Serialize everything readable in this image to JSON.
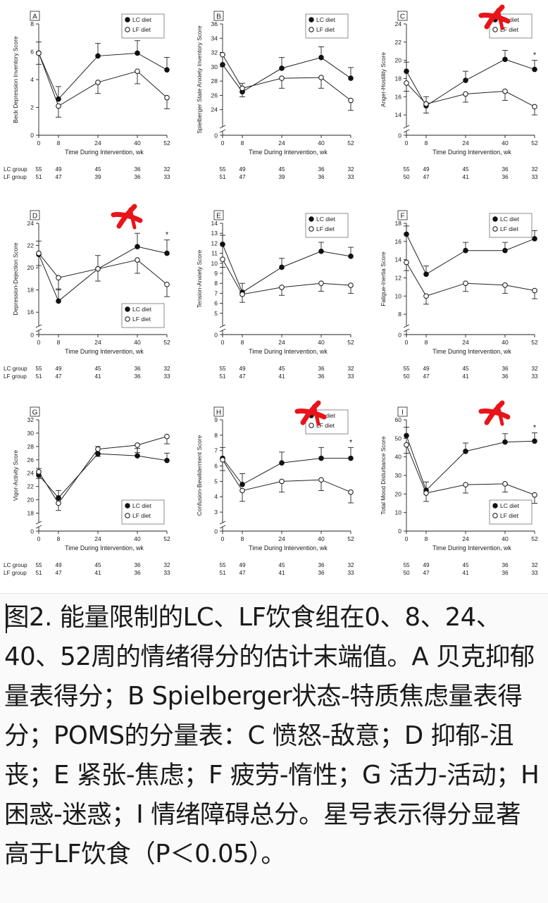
{
  "caption": "图2. 能量限制的LC、LF饮食组在0、8、24、40、52周的情绪得分的估计末端值。A 贝克抑郁量表得分；B Spielberger状态-特质焦虑量表得分；POMS的分量表：C 愤怒-敌意；D 抑郁-沮丧；E 紧张-焦虑；F 疲劳-惰性；G 活力-活动；H 困惑-迷惑；I 情绪障碍总分。星号表示得分显著高于LF饮食（P＜0.05）。",
  "colors": {
    "lc_marker": "#111111",
    "lf_marker": "#ffffff",
    "annotation_mark": "#e8141a"
  },
  "chart_data": [
    {
      "type": "line",
      "panel": "A",
      "ylabel": "Beck Depression Inventory Score",
      "xlabel": "Time During Intervention, wk",
      "x": [
        0,
        8,
        24,
        40,
        52
      ],
      "ylim": [
        0,
        8
      ],
      "yticks": [
        0,
        2,
        4,
        6,
        8
      ],
      "axis_break": false,
      "legend": "top-right",
      "significant": [],
      "series": [
        {
          "name": "LC diet",
          "values": [
            5.9,
            2.6,
            5.7,
            5.9,
            4.7
          ],
          "err": [
            0.8,
            0.9,
            0.9,
            0.9,
            0.9
          ]
        },
        {
          "name": "LF diet",
          "values": [
            5.9,
            2.1,
            3.8,
            4.6,
            2.7
          ],
          "err": [
            0.8,
            0.8,
            0.8,
            0.9,
            0.8
          ]
        }
      ],
      "n_rows": [
        {
          "label": "LC group",
          "values": [
            "55",
            "49",
            "45",
            "36",
            "32"
          ]
        },
        {
          "label": "LF group",
          "values": [
            "51",
            "47",
            "39",
            "36",
            "33"
          ]
        }
      ]
    },
    {
      "type": "line",
      "panel": "B",
      "ylabel": "Spielberger State Anxiety Inventory Score",
      "xlabel": "Time During Intervention, wk",
      "x": [
        0,
        8,
        24,
        40,
        52
      ],
      "ylim": [
        22,
        36
      ],
      "yticks": [
        24,
        26,
        28,
        30,
        32,
        34,
        36
      ],
      "axis_break": true,
      "legend": "top-right",
      "significant": [],
      "series": [
        {
          "name": "LC diet",
          "values": [
            30.3,
            26.5,
            29.8,
            31.3,
            28.4
          ],
          "err": [
            1.4,
            1.2,
            1.5,
            1.5,
            1.5
          ]
        },
        {
          "name": "LF diet",
          "values": [
            31.7,
            27.0,
            28.4,
            28.5,
            25.3
          ],
          "err": [
            1.4,
            1.2,
            1.4,
            1.5,
            1.4
          ]
        }
      ],
      "n_rows": [
        {
          "label": "LC group",
          "values": [
            "55",
            "49",
            "45",
            "36",
            "32"
          ]
        },
        {
          "label": "LF group",
          "values": [
            "51",
            "47",
            "39",
            "36",
            "33"
          ]
        }
      ]
    },
    {
      "type": "line",
      "panel": "C",
      "ylabel": "Anger-Hostility Score",
      "xlabel": "Time During Intervention, wk",
      "x": [
        0,
        8,
        24,
        40,
        52
      ],
      "ylim": [
        13,
        24
      ],
      "yticks": [
        14,
        16,
        18,
        20,
        22,
        24
      ],
      "axis_break": true,
      "legend": "top-right",
      "significant": [
        52
      ],
      "red_mark": true,
      "series": [
        {
          "name": "LC diet",
          "values": [
            18.8,
            15.0,
            17.8,
            20.1,
            19.0
          ],
          "err": [
            1.0,
            1.0,
            1.0,
            1.0,
            1.0
          ]
        },
        {
          "name": "LF diet",
          "values": [
            17.5,
            15.2,
            16.3,
            16.6,
            14.9
          ],
          "err": [
            0.9,
            1.0,
            0.9,
            1.0,
            0.9
          ]
        }
      ],
      "n_rows": [
        {
          "label": "LC group",
          "values": [
            "55",
            "49",
            "45",
            "36",
            "32"
          ]
        },
        {
          "label": "LF group",
          "values": [
            "50",
            "47",
            "41",
            "36",
            "33"
          ]
        }
      ]
    },
    {
      "type": "line",
      "panel": "D",
      "ylabel": "Depression-Dejection Score",
      "xlabel": "Time During Intervention, wk",
      "x": [
        0,
        8,
        24,
        40,
        52
      ],
      "ylim": [
        15,
        24
      ],
      "yticks": [
        16,
        18,
        20,
        22,
        24
      ],
      "axis_break": true,
      "legend": "bottom-right",
      "significant": [
        52
      ],
      "red_mark": true,
      "series": [
        {
          "name": "LC diet",
          "values": [
            21.2,
            17.0,
            19.9,
            21.9,
            21.3
          ],
          "err": [
            1.2,
            1.1,
            1.2,
            1.2,
            1.2
          ]
        },
        {
          "name": "LF diet",
          "values": [
            21.3,
            19.1,
            19.9,
            20.7,
            18.5
          ],
          "err": [
            1.1,
            1.1,
            1.1,
            1.2,
            1.1
          ]
        }
      ],
      "n_rows": [
        {
          "label": "LC group",
          "values": [
            "55",
            "49",
            "45",
            "36",
            "32"
          ]
        },
        {
          "label": "LF group",
          "values": [
            "51",
            "47",
            "41",
            "36",
            "33"
          ]
        }
      ]
    },
    {
      "type": "line",
      "panel": "E",
      "ylabel": "Tension-Anxiety Score",
      "xlabel": "Time During Intervention, wk",
      "x": [
        0,
        8,
        24,
        40,
        52
      ],
      "ylim": [
        4,
        14
      ],
      "yticks": [
        5,
        6,
        7,
        8,
        9,
        10,
        11,
        12,
        13,
        14
      ],
      "axis_break": true,
      "legend": "top-right",
      "significant": [],
      "series": [
        {
          "name": "LC diet",
          "values": [
            11.9,
            7.1,
            9.6,
            11.2,
            10.7
          ],
          "err": [
            0.9,
            0.9,
            0.9,
            0.9,
            0.9
          ]
        },
        {
          "name": "LF diet",
          "values": [
            10.4,
            6.9,
            7.6,
            8.0,
            7.8
          ],
          "err": [
            0.8,
            0.8,
            0.8,
            0.8,
            0.8
          ]
        }
      ],
      "n_rows": [
        {
          "label": "LC group",
          "values": [
            "55",
            "49",
            "45",
            "36",
            "32"
          ]
        },
        {
          "label": "LF group",
          "values": [
            "51",
            "47",
            "41",
            "36",
            "33"
          ]
        }
      ]
    },
    {
      "type": "line",
      "panel": "F",
      "ylabel": "Fatigue-Inertia Score",
      "xlabel": "Time During Intervention, wk",
      "x": [
        0,
        8,
        24,
        40,
        52
      ],
      "ylim": [
        7,
        18
      ],
      "yticks": [
        8,
        10,
        12,
        14,
        16,
        18
      ],
      "axis_break": true,
      "legend": "top-right",
      "significant": [],
      "series": [
        {
          "name": "LC diet",
          "values": [
            16.8,
            12.4,
            15.0,
            15.0,
            16.3
          ],
          "err": [
            0.9,
            0.9,
            0.9,
            0.9,
            0.9
          ]
        },
        {
          "name": "LF diet",
          "values": [
            13.7,
            10.0,
            11.4,
            11.2,
            10.6
          ],
          "err": [
            0.9,
            0.9,
            0.9,
            0.9,
            0.9
          ]
        }
      ],
      "n_rows": [
        {
          "label": "LC group",
          "values": [
            "55",
            "49",
            "45",
            "36",
            "32"
          ]
        },
        {
          "label": "LF group",
          "values": [
            "50",
            "47",
            "41",
            "36",
            "33"
          ]
        }
      ]
    },
    {
      "type": "line",
      "panel": "G",
      "ylabel": "Vigor-Activity Score",
      "xlabel": "Time During Intervention, wk",
      "x": [
        0,
        8,
        24,
        40,
        52
      ],
      "ylim": [
        17,
        32
      ],
      "yticks": [
        18,
        20,
        22,
        24,
        26,
        28,
        30,
        32
      ],
      "axis_break": true,
      "legend": "bottom-right",
      "significant": [],
      "series": [
        {
          "name": "LC diet",
          "values": [
            23.7,
            20.3,
            26.9,
            26.6,
            25.9
          ],
          "err": [
            1.0,
            1.1,
            1.1,
            1.1,
            1.1
          ]
        },
        {
          "name": "LF diet",
          "values": [
            24.2,
            19.5,
            27.6,
            28.2,
            29.5
          ],
          "err": [
            1.0,
            1.1,
            1.1,
            1.1,
            1.1
          ]
        }
      ],
      "n_rows": [
        {
          "label": "LC group",
          "values": [
            "55",
            "49",
            "45",
            "36",
            "32"
          ]
        },
        {
          "label": "LF group",
          "values": [
            "51",
            "47",
            "41",
            "36",
            "33"
          ]
        }
      ]
    },
    {
      "type": "line",
      "panel": "H",
      "ylabel": "Confusion-Bewilderment Score",
      "xlabel": "Time During Intervention, wk",
      "x": [
        0,
        8,
        24,
        40,
        52
      ],
      "ylim": [
        2.5,
        9
      ],
      "yticks": [
        3,
        4,
        5,
        6,
        7,
        8,
        9
      ],
      "axis_break": true,
      "legend": "top-right",
      "significant": [
        52
      ],
      "red_mark": true,
      "series": [
        {
          "name": "LC diet",
          "values": [
            6.5,
            4.8,
            6.2,
            6.5,
            6.5
          ],
          "err": [
            0.7,
            0.7,
            0.7,
            0.7,
            0.7
          ]
        },
        {
          "name": "LF diet",
          "values": [
            6.4,
            4.4,
            5.0,
            5.1,
            4.3
          ],
          "err": [
            0.7,
            0.7,
            0.7,
            0.7,
            0.7
          ]
        }
      ],
      "n_rows": [
        {
          "label": "LC group",
          "values": [
            "55",
            "49",
            "45",
            "36",
            "32"
          ]
        },
        {
          "label": "LF group",
          "values": [
            "51",
            "47",
            "41",
            "36",
            "33"
          ]
        }
      ]
    },
    {
      "type": "line",
      "panel": "I",
      "ylabel": "Total Mood Disturbance Score",
      "xlabel": "Time During Intervention, wk",
      "x": [
        0,
        8,
        24,
        40,
        52
      ],
      "ylim": [
        0,
        60
      ],
      "yticks": [
        0,
        10,
        20,
        30,
        40,
        50,
        60
      ],
      "axis_break": false,
      "legend": "bottom-right",
      "significant": [
        52
      ],
      "red_mark": true,
      "series": [
        {
          "name": "LC diet",
          "values": [
            51.5,
            22.0,
            43.0,
            48.0,
            48.5
          ],
          "err": [
            4.5,
            4.5,
            4.5,
            4.5,
            4.5
          ]
        },
        {
          "name": "LF diet",
          "values": [
            46.5,
            20.5,
            25.0,
            25.5,
            19.5
          ],
          "err": [
            4.5,
            4.5,
            4.5,
            4.5,
            4.5
          ]
        }
      ],
      "n_rows": [
        {
          "label": "LC group",
          "values": [
            "55",
            "49",
            "45",
            "36",
            "32"
          ]
        },
        {
          "label": "LF group",
          "values": [
            "50",
            "47",
            "41",
            "36",
            "33"
          ]
        }
      ]
    }
  ]
}
